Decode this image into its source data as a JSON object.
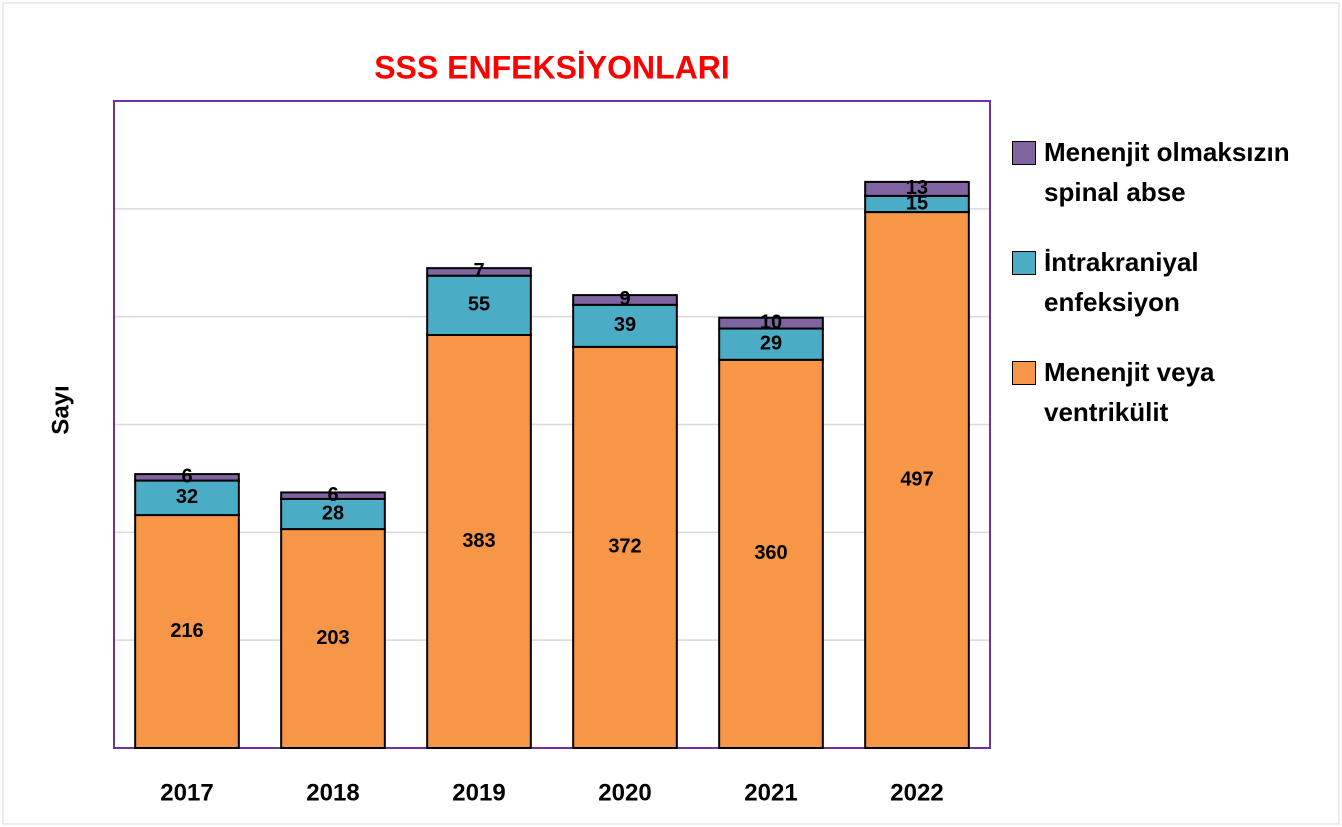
{
  "chart_data": {
    "type": "stacked_bar",
    "title": "SSS ENFEKSİYONLARI",
    "y_label": "Sayı",
    "categories": [
      "2017",
      "2018",
      "2019",
      "2020",
      "2021",
      "2022"
    ],
    "series": [
      {
        "name": "Menenjit veya ventrikülit",
        "color": "#f79646",
        "values": [
          216,
          203,
          383,
          372,
          360,
          497
        ]
      },
      {
        "name": "İntrakraniyal enfeksiyon",
        "color": "#4bacc6",
        "values": [
          32,
          28,
          55,
          39,
          29,
          15
        ]
      },
      {
        "name": "Menenjit olmaksızın spinal abse",
        "color": "#8064a2",
        "values": [
          6,
          6,
          7,
          9,
          10,
          13
        ]
      }
    ],
    "ylim": [
      0,
      600
    ],
    "yticks": [
      0,
      100,
      200,
      300,
      400,
      500,
      600
    ],
    "grid": true,
    "legend": "right"
  }
}
